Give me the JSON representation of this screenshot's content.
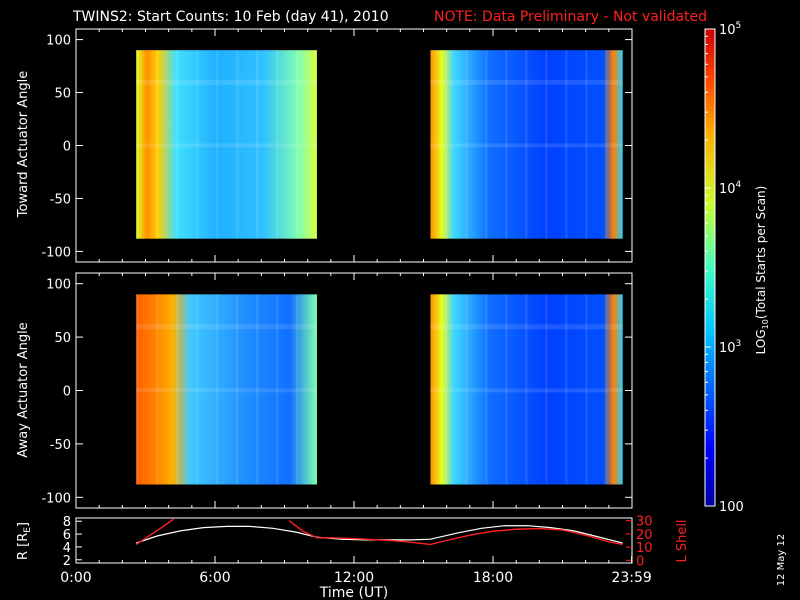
{
  "header": {
    "title": "TWINS2: Start Counts: 10 Feb (day  41), 2010",
    "note": "NOTE: Data Preliminary - Not validated"
  },
  "side_label": "12 May 12",
  "colors": {
    "background": "#000000",
    "axis": "#ffffff",
    "r_line": "#ffffff",
    "lshell_line": "#ff2020",
    "note": "#ff2020"
  },
  "chart_data": [
    {
      "type": "heatmap",
      "panel": "top",
      "ylabel": "Toward Actuator Angle",
      "x_ticks": [],
      "y_ticks": [
        "-100",
        "-50",
        "0",
        "50",
        "100"
      ],
      "ylim": [
        -110,
        110
      ],
      "xlim": [
        0,
        24
      ],
      "data_blocks": [
        {
          "t_start": 2.6,
          "t_end": 10.4,
          "angle_min": -88,
          "angle_max": 90
        },
        {
          "t_start": 15.3,
          "t_end": 23.6,
          "angle_min": -88,
          "angle_max": 90
        }
      ]
    },
    {
      "type": "heatmap",
      "panel": "middle",
      "ylabel": "Away Actuator Angle",
      "x_ticks": [],
      "y_ticks": [
        "-100",
        "-50",
        "0",
        "50",
        "100"
      ],
      "ylim": [
        -110,
        110
      ],
      "xlim": [
        0,
        24
      ],
      "data_blocks": [
        {
          "t_start": 2.6,
          "t_end": 10.4,
          "angle_min": -88,
          "angle_max": 90
        },
        {
          "t_start": 15.3,
          "t_end": 23.6,
          "angle_min": -88,
          "angle_max": 90
        }
      ]
    },
    {
      "type": "line",
      "panel": "bottom",
      "xlabel": "Time (UT)",
      "ylabel_left": "R [R",
      "ylabel_left_sub": "E",
      "ylabel_left_end": "]",
      "ylabel_right": "L Shell",
      "x_ticks": [
        "0:00",
        "6:00",
        "12:00",
        "18:00",
        "23:59"
      ],
      "x_tick_values": [
        0,
        6,
        12,
        18,
        23.983
      ],
      "y_left_ticks": [
        "2",
        "4",
        "6",
        "8"
      ],
      "y_right_ticks": [
        "0",
        "10",
        "20",
        "30"
      ],
      "ylim_left": [
        1.5,
        8.5
      ],
      "ylim_right": [
        -2,
        32
      ],
      "xlim": [
        0,
        24
      ],
      "series": [
        {
          "axis": "left",
          "x": [
            2.6,
            3.5,
            4.5,
            5.5,
            6.5,
            7.5,
            8.5,
            9.5,
            10.4,
            11.5,
            12.5,
            13.5,
            14.5,
            15.3,
            16.5,
            17.5,
            18.5,
            19.5,
            20.5,
            21.5,
            22.5,
            23.6
          ],
          "values": [
            4.6,
            5.7,
            6.5,
            7.0,
            7.2,
            7.2,
            6.9,
            6.3,
            5.5,
            5.2,
            5.1,
            5.1,
            5.1,
            5.2,
            6.2,
            6.9,
            7.3,
            7.3,
            7.0,
            6.5,
            5.6,
            4.6
          ]
        },
        {
          "axis": "right",
          "segments": [
            {
              "x": [
                2.6,
                3.2,
                3.8,
                4.2
              ],
              "values": [
                12,
                19,
                26,
                31
              ]
            },
            {
              "x": [
                9.2,
                9.8,
                10.4,
                11.0,
                12.0,
                13.0,
                14.0,
                15.3,
                16.0,
                17.0,
                18.0,
                19.0,
                20.0,
                21.0,
                22.0,
                23.0,
                23.6
              ],
              "values": [
                30,
                22,
                17,
                17,
                16.5,
                15.5,
                14.5,
                12,
                15,
                19,
                22,
                23.5,
                24,
                23,
                19,
                14,
                12
              ]
            }
          ]
        }
      ]
    }
  ],
  "colorbar": {
    "label": "LOG",
    "label_sub": "10",
    "label_end": "(Total Starts per Scan)",
    "ticks": [
      {
        "base": "10",
        "exp": "5",
        "value": 100000
      },
      {
        "base": "10",
        "exp": "4",
        "value": 10000
      },
      {
        "base": "10",
        "exp": "3",
        "value": 1000
      },
      {
        "base": "100",
        "exp": "",
        "value": 100
      }
    ],
    "range_log": [
      2,
      5
    ]
  }
}
